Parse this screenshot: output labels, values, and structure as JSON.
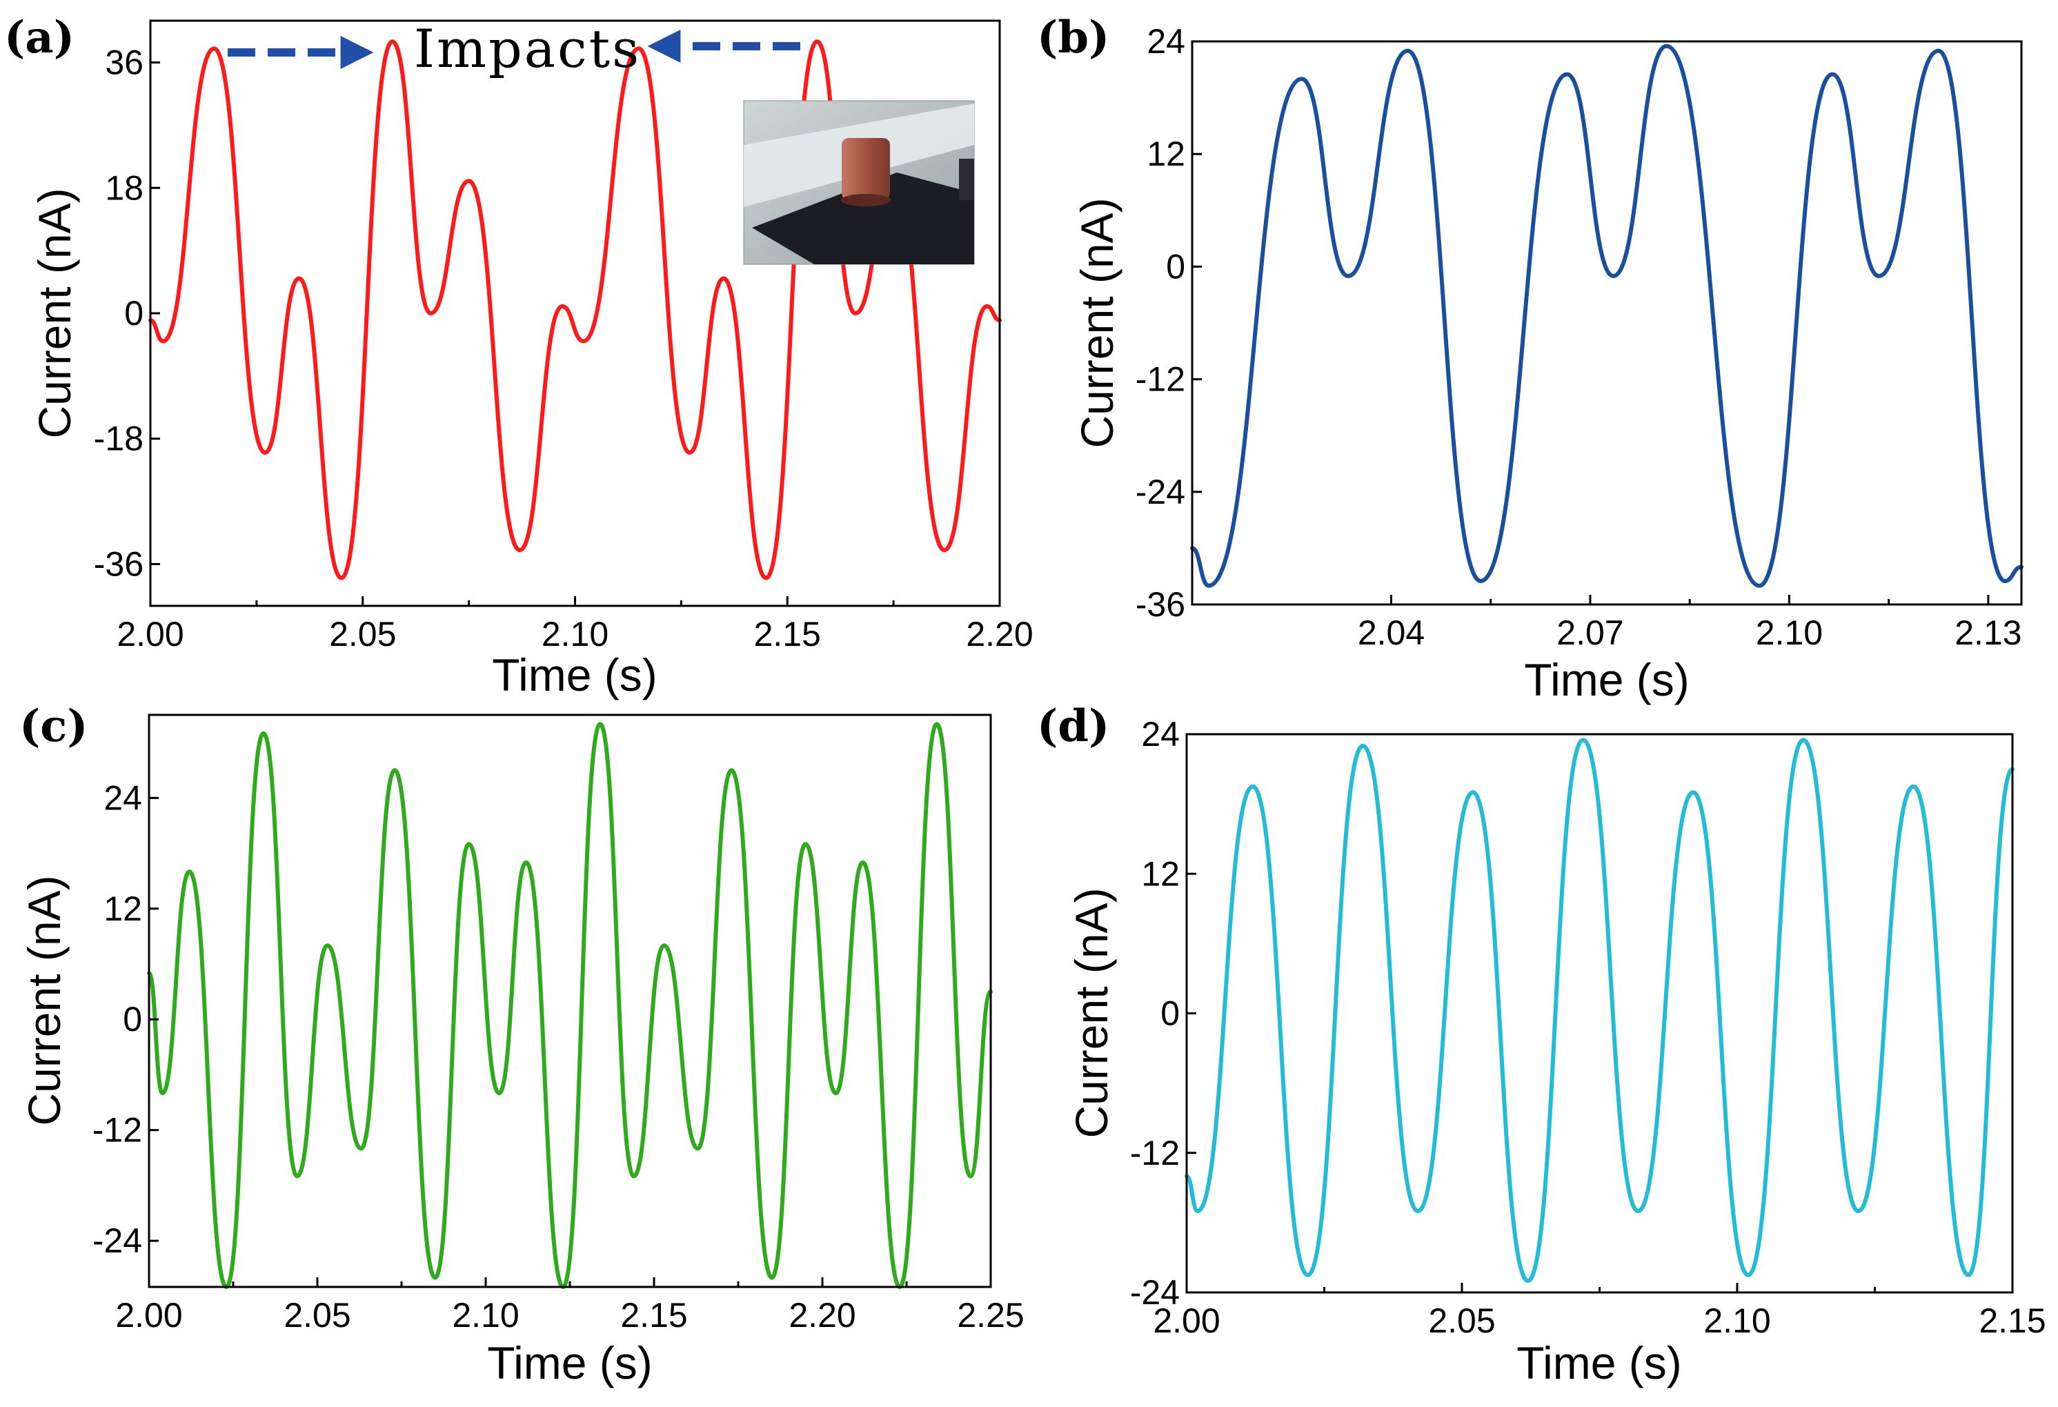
{
  "chart_data": [
    {
      "panel": "(a)",
      "type": "line",
      "xlabel": "Time (s)",
      "ylabel": "Current (nA)",
      "xlim": [
        2.0,
        2.2
      ],
      "ylim": [
        -42,
        42
      ],
      "xticks": [
        2.0,
        2.05,
        2.1,
        2.15,
        2.2
      ],
      "xtick_labels": [
        "2.00",
        "2.05",
        "2.10",
        "2.15",
        "2.20"
      ],
      "yticks": [
        36,
        18,
        0,
        -18,
        -36
      ],
      "ytick_labels": [
        "36",
        "18",
        "0",
        "-18",
        "-36"
      ],
      "color": "#ff1a1a",
      "annotation": "Impacts",
      "inset": "photo-inset",
      "series": [
        {
          "x": [
            2.0,
            2.003,
            2.015,
            2.027,
            2.035,
            2.045,
            2.057,
            2.066,
            2.075,
            2.087,
            2.097,
            2.102,
            2.115,
            2.127,
            2.135,
            2.145,
            2.157,
            2.166,
            2.175,
            2.187,
            2.197,
            2.2
          ],
          "values": [
            -1,
            -4,
            38,
            -20,
            5,
            -38,
            39,
            0,
            19,
            -34,
            1,
            -4,
            38,
            -20,
            5,
            -38,
            39,
            0,
            19,
            -34,
            1,
            -1
          ]
        }
      ]
    },
    {
      "panel": "(b)",
      "type": "line",
      "xlabel": "Time (s)",
      "ylabel": "Current (nA)",
      "xlim": [
        2.01,
        2.135
      ],
      "ylim": [
        -36,
        24
      ],
      "xticks": [
        2.04,
        2.07,
        2.1,
        2.13
      ],
      "xtick_labels": [
        "2.04",
        "2.07",
        "2.10",
        "2.13"
      ],
      "yticks": [
        24,
        12,
        0,
        -12,
        -24,
        -36
      ],
      "ytick_labels": [
        "24",
        "12",
        "0",
        "-12",
        "-24",
        "-36"
      ],
      "color": "#1a4fa0",
      "series": [
        {
          "x": [
            2.01,
            2.0125,
            2.0265,
            2.0335,
            2.0425,
            2.0535,
            2.0665,
            2.0735,
            2.0815,
            2.0955,
            2.1065,
            2.1135,
            2.1225,
            2.1325,
            2.135
          ],
          "values": [
            -30,
            -34,
            20,
            -1,
            23,
            -33.5,
            20.5,
            -1,
            23.5,
            -34,
            20.5,
            -1,
            23,
            -33.5,
            -32
          ]
        }
      ]
    },
    {
      "panel": "(c)",
      "type": "line",
      "xlabel": "Time (s)",
      "ylabel": "Current (nA)",
      "xlim": [
        2.0,
        2.25
      ],
      "ylim": [
        -29,
        33
      ],
      "xticks": [
        2.0,
        2.05,
        2.1,
        2.15,
        2.2,
        2.25
      ],
      "xtick_labels": [
        "2.00",
        "2.05",
        "2.10",
        "2.15",
        "2.20",
        "2.25"
      ],
      "yticks": [
        24,
        12,
        0,
        -12,
        -24
      ],
      "ytick_labels": [
        "24",
        "12",
        "0",
        "-12",
        "-24"
      ],
      "color": "#2eaa1c",
      "series": [
        {
          "x": [
            2.0,
            2.004,
            2.012,
            2.023,
            2.034,
            2.044,
            2.053,
            2.063,
            2.073,
            2.085,
            2.095,
            2.104,
            2.112,
            2.123,
            2.134,
            2.144,
            2.153,
            2.163,
            2.173,
            2.185,
            2.195,
            2.204,
            2.212,
            2.223,
            2.234,
            2.244,
            2.25
          ],
          "values": [
            5,
            -8,
            16,
            -29,
            31,
            -17,
            8,
            -14,
            27,
            -28,
            19,
            -8,
            17,
            -29,
            32,
            -17,
            8,
            -14,
            27,
            -28,
            19,
            -8,
            17,
            -29,
            32,
            -17,
            3
          ]
        }
      ]
    },
    {
      "panel": "(d)",
      "type": "line",
      "xlabel": "Time (s)",
      "ylabel": "Current (nA)",
      "xlim": [
        2.0,
        2.15
      ],
      "ylim": [
        -24,
        24
      ],
      "xticks": [
        2.0,
        2.05,
        2.1,
        2.15
      ],
      "xtick_labels": [
        "2.00",
        "2.05",
        "2.10",
        "2.15"
      ],
      "yticks": [
        24,
        12,
        0,
        -12,
        -24
      ],
      "ytick_labels": [
        "24",
        "12",
        "0",
        "-12",
        "-24"
      ],
      "color": "#22bcd6",
      "series": [
        {
          "x": [
            2.0,
            2.002,
            2.012,
            2.022,
            2.032,
            2.042,
            2.052,
            2.062,
            2.072,
            2.082,
            2.092,
            2.102,
            2.112,
            2.122,
            2.132,
            2.142,
            2.15
          ],
          "values": [
            -14,
            -17,
            19.5,
            -22.5,
            23,
            -17,
            19,
            -23,
            23.5,
            -17,
            19,
            -22.5,
            23.5,
            -17,
            19.5,
            -22.5,
            21
          ]
        }
      ]
    }
  ]
}
